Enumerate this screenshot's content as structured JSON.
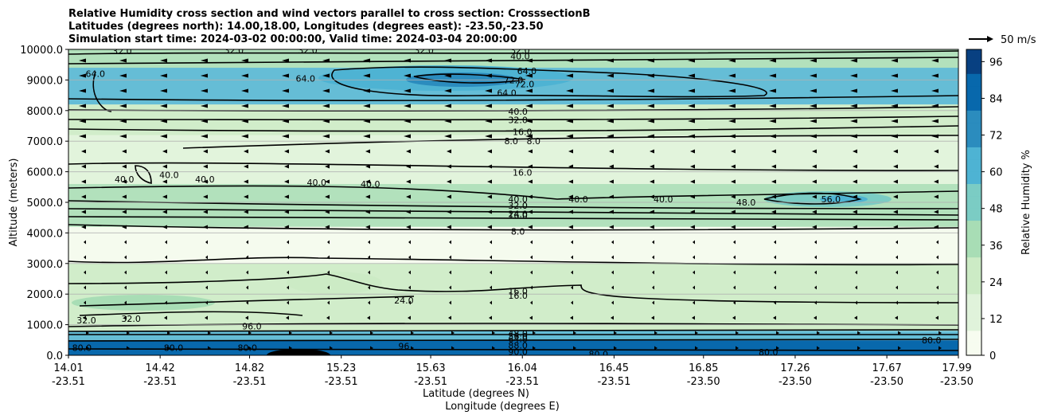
{
  "chart_data": {
    "type": "heatmap",
    "title_lines": [
      "Relative Humidity cross section and wind vectors parallel to cross section: CrosssectionB",
      "Latitudes (degrees north): 14.00,18.00, Longitudes (degrees east): -23.50,-23.50",
      "Simulation start time: 2024-03-02 00:00:00, Valid time: 2024-03-04 20:00:00"
    ],
    "ylabel": "Altitude (meters)",
    "xlabel_lat": "Latitude (degrees N)",
    "xlabel_lon": "Longitude (degrees E)",
    "ylim": [
      0,
      10000
    ],
    "y_ticks": [
      "0.0",
      "1000.0",
      "2000.0",
      "3000.0",
      "4000.0",
      "5000.0",
      "6000.0",
      "7000.0",
      "8000.0",
      "9000.0",
      "10000.0"
    ],
    "y_tick_values": [
      0,
      1000,
      2000,
      3000,
      4000,
      5000,
      6000,
      7000,
      8000,
      9000,
      10000
    ],
    "x_ticks_lat": [
      "14.01",
      "14.42",
      "14.82",
      "15.23",
      "15.63",
      "16.04",
      "16.45",
      "16.85",
      "17.26",
      "17.67",
      "17.99"
    ],
    "x_ticks_lon": [
      "-23.51",
      "-23.51",
      "-23.51",
      "-23.51",
      "-23.51",
      "-23.51",
      "-23.51",
      "-23.50",
      "-23.50",
      "-23.50",
      "-23.50"
    ],
    "x_tick_values": [
      14.01,
      14.42,
      14.82,
      15.23,
      15.63,
      16.04,
      16.45,
      16.85,
      17.26,
      17.67,
      17.99
    ],
    "xlim": [
      14.01,
      17.99
    ],
    "grid": "horizontal",
    "colorbar": {
      "label": "Relative Humidity %",
      "ticks": [
        "0",
        "12",
        "24",
        "36",
        "48",
        "60",
        "72",
        "84",
        "96"
      ],
      "tick_values": [
        0,
        12,
        24,
        36,
        48,
        60,
        72,
        84,
        96
      ],
      "range": [
        0,
        100
      ]
    },
    "quiver_key": {
      "label": "50 m/s"
    },
    "series": [
      {
        "name": "humidity_band",
        "altitude_m": [
          0,
          500
        ],
        "rh_percent": 90
      },
      {
        "name": "humidity_band",
        "altitude_m": [
          500,
          800
        ],
        "rh_percent": 60
      },
      {
        "name": "humidity_band",
        "altitude_m": [
          800,
          3000
        ],
        "rh_percent": 20
      },
      {
        "name": "humidity_band",
        "altitude_m": [
          3000,
          4200
        ],
        "rh_percent": 6
      },
      {
        "name": "humidity_band",
        "altitude_m": [
          4200,
          5600
        ],
        "rh_percent": 32
      },
      {
        "name": "humidity_band",
        "altitude_m": [
          5600,
          7200
        ],
        "rh_percent": 14
      },
      {
        "name": "humidity_band",
        "altitude_m": [
          7200,
          8200
        ],
        "rh_percent": 28
      },
      {
        "name": "humidity_band",
        "altitude_m": [
          8200,
          9400
        ],
        "rh_percent": 58
      },
      {
        "name": "humidity_band",
        "altitude_m": [
          9400,
          10000
        ],
        "rh_percent": 32
      }
    ],
    "contour_labels": [
      {
        "text": "32.0",
        "lat": 14.25,
        "alt": 9950
      },
      {
        "text": "32.0",
        "lat": 14.75,
        "alt": 9980
      },
      {
        "text": "32.0",
        "lat": 15.08,
        "alt": 9980
      },
      {
        "text": "32.0",
        "lat": 15.6,
        "alt": 9980
      },
      {
        "text": "32.0",
        "lat": 16.03,
        "alt": 9980
      },
      {
        "text": "40.0",
        "lat": 16.03,
        "alt": 9780
      },
      {
        "text": "64.0",
        "lat": 14.13,
        "alt": 9200
      },
      {
        "text": "64.0",
        "lat": 15.07,
        "alt": 9050
      },
      {
        "text": "64.0",
        "lat": 16.06,
        "alt": 9300
      },
      {
        "text": "72.0",
        "lat": 16.0,
        "alt": 9000
      },
      {
        "text": "72.0",
        "lat": 16.05,
        "alt": 8870
      },
      {
        "text": "64.0",
        "lat": 15.97,
        "alt": 8580
      },
      {
        "text": "40.0",
        "lat": 16.02,
        "alt": 7970
      },
      {
        "text": "32.0",
        "lat": 16.02,
        "alt": 7700
      },
      {
        "text": "16.0",
        "lat": 16.04,
        "alt": 7300
      },
      {
        "text": "8.0",
        "lat": 15.99,
        "alt": 7000
      },
      {
        "text": "8.0",
        "lat": 16.09,
        "alt": 7000
      },
      {
        "text": "16.0",
        "lat": 16.04,
        "alt": 5980
      },
      {
        "text": "40.0",
        "lat": 14.26,
        "alt": 5750
      },
      {
        "text": "40.0",
        "lat": 14.46,
        "alt": 5900
      },
      {
        "text": "40.0",
        "lat": 14.62,
        "alt": 5750
      },
      {
        "text": "40.0",
        "lat": 15.12,
        "alt": 5650
      },
      {
        "text": "40.0",
        "lat": 15.36,
        "alt": 5600
      },
      {
        "text": "40.0",
        "lat": 16.02,
        "alt": 5100
      },
      {
        "text": "32.0",
        "lat": 16.02,
        "alt": 4900
      },
      {
        "text": "24.0",
        "lat": 16.02,
        "alt": 4620
      },
      {
        "text": "16.0",
        "lat": 16.02,
        "alt": 4570
      },
      {
        "text": "8.0",
        "lat": 16.02,
        "alt": 4050
      },
      {
        "text": "40.0",
        "lat": 16.29,
        "alt": 5100
      },
      {
        "text": "40.0",
        "lat": 16.67,
        "alt": 5100
      },
      {
        "text": "48.0",
        "lat": 17.04,
        "alt": 5000
      },
      {
        "text": "56.0",
        "lat": 17.42,
        "alt": 5100
      },
      {
        "text": "16.0",
        "lat": 16.02,
        "alt": 2100
      },
      {
        "text": "16.0",
        "lat": 16.02,
        "alt": 1950
      },
      {
        "text": "24.0",
        "lat": 15.51,
        "alt": 1800
      },
      {
        "text": "32.0",
        "lat": 14.29,
        "alt": 1200
      },
      {
        "text": "32.0",
        "lat": 14.09,
        "alt": 1150
      },
      {
        "text": "96",
        "lat": 15.51,
        "alt": 300
      },
      {
        "text": "88.0",
        "lat": 16.02,
        "alt": 330
      },
      {
        "text": "90.0",
        "lat": 16.02,
        "alt": 120
      },
      {
        "text": "80.0",
        "lat": 16.38,
        "alt": 40
      },
      {
        "text": "80.0",
        "lat": 17.14,
        "alt": 100
      },
      {
        "text": "80.0",
        "lat": 14.07,
        "alt": 250
      },
      {
        "text": "80.0",
        "lat": 14.48,
        "alt": 250
      },
      {
        "text": "80.0",
        "lat": 14.81,
        "alt": 250
      },
      {
        "text": "80.0",
        "lat": 17.87,
        "alt": 500
      },
      {
        "text": "96.0",
        "lat": 14.83,
        "alt": 950
      },
      {
        "text": "48.0",
        "lat": 16.02,
        "alt": 720
      },
      {
        "text": "56.0",
        "lat": 16.02,
        "alt": 620
      },
      {
        "text": "64.0",
        "lat": 16.02,
        "alt": 530
      }
    ]
  }
}
